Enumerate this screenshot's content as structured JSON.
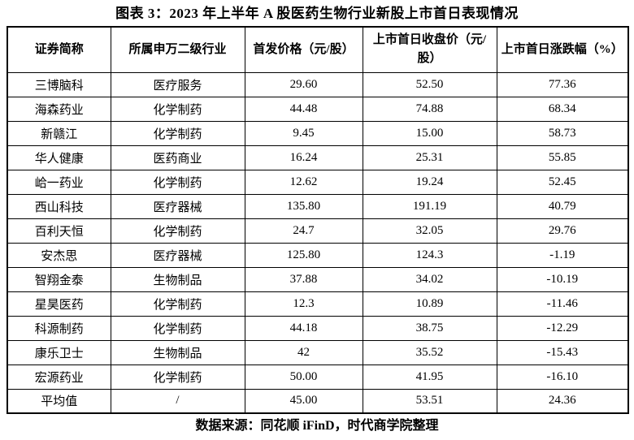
{
  "title": "图表 3：2023 年上半年 A 股医药生物行业新股上市首日表现情况",
  "table": {
    "headers": [
      "证券简称",
      "所属申万二级行业",
      "首发价格（元/股）",
      "上市首日收盘价（元/股）",
      "上市首日涨跌幅（%）"
    ],
    "rows": [
      [
        "三博脑科",
        "医疗服务",
        "29.60",
        "52.50",
        "77.36"
      ],
      [
        "海森药业",
        "化学制药",
        "44.48",
        "74.88",
        "68.34"
      ],
      [
        "新赣江",
        "化学制药",
        "9.45",
        "15.00",
        "58.73"
      ],
      [
        "华人健康",
        "医药商业",
        "16.24",
        "25.31",
        "55.85"
      ],
      [
        "峆一药业",
        "化学制药",
        "12.62",
        "19.24",
        "52.45"
      ],
      [
        "西山科技",
        "医疗器械",
        "135.80",
        "191.19",
        "40.79"
      ],
      [
        "百利天恒",
        "化学制药",
        "24.7",
        "32.05",
        "29.76"
      ],
      [
        "安杰思",
        "医疗器械",
        "125.80",
        "124.3",
        "-1.19"
      ],
      [
        "智翔金泰",
        "生物制品",
        "37.88",
        "34.02",
        "-10.19"
      ],
      [
        "星昊医药",
        "化学制药",
        "12.3",
        "10.89",
        "-11.46"
      ],
      [
        "科源制药",
        "化学制药",
        "44.18",
        "38.75",
        "-12.29"
      ],
      [
        "康乐卫士",
        "生物制品",
        "42",
        "35.52",
        "-15.43"
      ],
      [
        "宏源药业",
        "化学制药",
        "50.00",
        "41.95",
        "-16.10"
      ],
      [
        "平均值",
        "/",
        "45.00",
        "53.51",
        "24.36"
      ]
    ]
  },
  "footer": "数据来源：同花顺 iFinD，时代商学院整理",
  "colors": {
    "text": "#000000",
    "border": "#000000",
    "background": "#ffffff"
  }
}
